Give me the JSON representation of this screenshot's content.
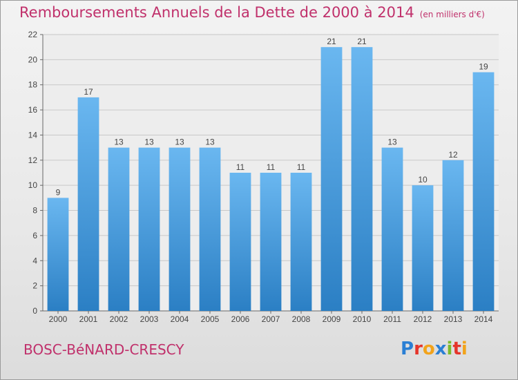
{
  "title": "Remboursements Annuels de la Dette de 2000 à 2014",
  "subtitle": "(en milliers d'€)",
  "commune": "BOSC-BéNARD-CRESCY",
  "logo": {
    "text": "Proxiti",
    "letters": [
      {
        "ch": "P",
        "color": "#2a7fd4"
      },
      {
        "ch": "r",
        "color": "#e5352b"
      },
      {
        "ch": "o",
        "color": "#f2a31b"
      },
      {
        "ch": "x",
        "color": "#2a7fd4"
      },
      {
        "ch": "i",
        "color": "#7cbb2a"
      },
      {
        "ch": "t",
        "color": "#e5352b"
      },
      {
        "ch": "i",
        "color": "#f2a31b"
      }
    ]
  },
  "colors": {
    "bar_light": "#6ab7f0",
    "bar_dark": "#2b7fc4",
    "title": "#c0306b",
    "axis": "#666666",
    "grid": "#c8c8c8"
  },
  "chart_data": {
    "type": "bar",
    "categories": [
      "2000",
      "2001",
      "2002",
      "2003",
      "2004",
      "2005",
      "2006",
      "2007",
      "2008",
      "2009",
      "2010",
      "2011",
      "2012",
      "2013",
      "2014"
    ],
    "values": [
      9,
      17,
      13,
      13,
      13,
      13,
      11,
      11,
      11,
      21,
      21,
      13,
      10,
      12,
      19
    ],
    "ylim": [
      0,
      22
    ],
    "yticks": [
      0,
      2,
      4,
      6,
      8,
      10,
      12,
      14,
      16,
      18,
      20,
      22
    ],
    "grid": true,
    "data_labels": true
  }
}
